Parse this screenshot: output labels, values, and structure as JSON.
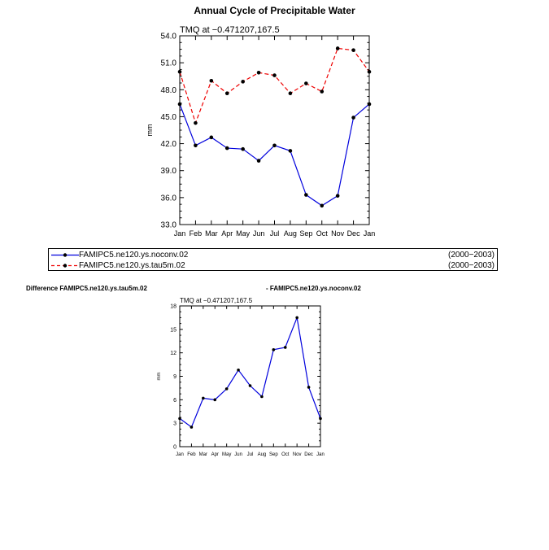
{
  "title": "Annual Cycle of Precipitable Water",
  "colors": {
    "series1": "#0000dd",
    "series2": "#ee0000",
    "diff": "#0000dd",
    "marker": "#000000"
  },
  "chart_data": [
    {
      "type": "line",
      "subtitle": "TMQ at −0.471207,167.5",
      "xlabel": "",
      "ylabel": "mm",
      "categories": [
        "Jan",
        "Feb",
        "Mar",
        "Apr",
        "May",
        "Jun",
        "Jul",
        "Aug",
        "Sep",
        "Oct",
        "Nov",
        "Dec",
        "Jan"
      ],
      "ylim": [
        33.0,
        54.0
      ],
      "yticks": [
        "33.0",
        "36.0",
        "39.0",
        "42.0",
        "45.0",
        "48.0",
        "51.0",
        "54.0"
      ],
      "series": [
        {
          "name": "FAMIPC5.ne120.ys.noconv.02",
          "period": "(2000−2003)",
          "style": "solid",
          "values": [
            46.4,
            41.8,
            42.7,
            41.5,
            41.4,
            40.1,
            41.8,
            41.2,
            36.3,
            35.1,
            36.2,
            44.9,
            46.4
          ]
        },
        {
          "name": "FAMIPC5.ne120.ys.tau5m.02",
          "period": "(2000−2003)",
          "style": "dashed",
          "values": [
            50.0,
            44.3,
            49.0,
            47.6,
            48.9,
            49.9,
            49.6,
            47.6,
            48.7,
            47.8,
            52.6,
            52.4,
            50.0
          ]
        }
      ]
    },
    {
      "type": "line",
      "title_left": "Difference FAMIPC5.ne120.ys.tau5m.02",
      "title_right": "- FAMIPC5.ne120.ys.noconv.02",
      "subtitle": "TMQ at −0.471207,167.5",
      "xlabel": "",
      "ylabel": "mm",
      "categories": [
        "Jan",
        "Feb",
        "Mar",
        "Apr",
        "May",
        "Jun",
        "Jul",
        "Aug",
        "Sep",
        "Oct",
        "Nov",
        "Dec",
        "Jan"
      ],
      "ylim": [
        0,
        18
      ],
      "yticks": [
        "0",
        "3",
        "6",
        "9",
        "12",
        "15",
        "18"
      ],
      "series": [
        {
          "name": "difference",
          "style": "solid",
          "values": [
            3.6,
            2.5,
            6.2,
            6.0,
            7.4,
            9.8,
            7.8,
            6.4,
            12.4,
            12.7,
            16.5,
            7.6,
            3.6
          ]
        }
      ]
    }
  ]
}
